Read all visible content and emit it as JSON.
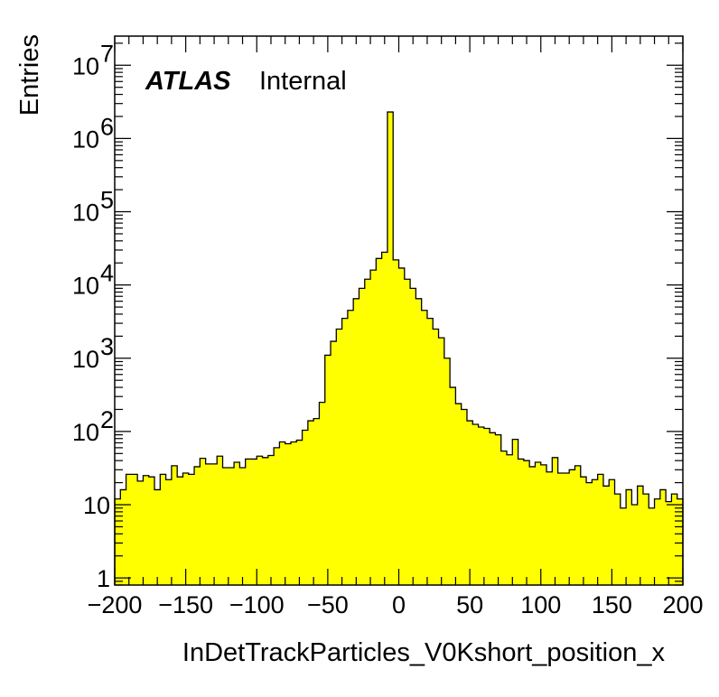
{
  "chart_data": {
    "type": "histogram",
    "title": "",
    "xlabel": "InDetTrackParticles_V0Kshort_position_x",
    "ylabel": "Entries",
    "xlim": [
      -200,
      200
    ],
    "ylim": [
      0.8,
      25000000
    ],
    "yscale": "log",
    "grid": false,
    "legend": "none",
    "fill_color": "#ffff00",
    "line_color": "#000000",
    "label": {
      "experiment": "ATLAS",
      "status": "Internal"
    },
    "x_ticks": [
      {
        "value": -200,
        "label": "−200"
      },
      {
        "value": -150,
        "label": "−150"
      },
      {
        "value": -100,
        "label": "−100"
      },
      {
        "value": -50,
        "label": "−50"
      },
      {
        "value": 0,
        "label": "0"
      },
      {
        "value": 50,
        "label": "50"
      },
      {
        "value": 100,
        "label": "100"
      },
      {
        "value": 150,
        "label": "150"
      },
      {
        "value": 200,
        "label": "200"
      }
    ],
    "y_ticks": [
      {
        "value": 1,
        "base": "1",
        "exp": ""
      },
      {
        "value": 10,
        "base": "10",
        "exp": ""
      },
      {
        "value": 100,
        "base": "10",
        "exp": "2"
      },
      {
        "value": 1000,
        "base": "10",
        "exp": "3"
      },
      {
        "value": 10000,
        "base": "10",
        "exp": "4"
      },
      {
        "value": 100000,
        "base": "10",
        "exp": "5"
      },
      {
        "value": 1000000,
        "base": "10",
        "exp": "6"
      },
      {
        "value": 10000000,
        "base": "10",
        "exp": "7"
      }
    ],
    "bin_edges_start": -200,
    "bin_width": 4,
    "values": [
      12,
      16,
      26,
      26,
      21,
      25,
      24,
      16,
      26,
      22,
      34,
      24,
      27,
      26,
      33,
      43,
      36,
      36,
      46,
      32,
      32,
      38,
      32,
      42,
      42,
      46,
      44,
      47,
      60,
      72,
      68,
      72,
      76,
      104,
      140,
      150,
      250,
      1100,
      1700,
      2500,
      3500,
      4500,
      6500,
      9000,
      12000,
      16000,
      23000,
      28000,
      2300000,
      22000,
      17000,
      12000,
      9000,
      6500,
      4500,
      3500,
      2500,
      1900,
      1000,
      400,
      240,
      200,
      140,
      125,
      115,
      110,
      96,
      90,
      54,
      48,
      78,
      42,
      40,
      33,
      38,
      35,
      28,
      44,
      27,
      27,
      30,
      34,
      24,
      20,
      22,
      26,
      18,
      22,
      14,
      9,
      16,
      10,
      18,
      14,
      9,
      12,
      16,
      11,
      14,
      12
    ]
  }
}
